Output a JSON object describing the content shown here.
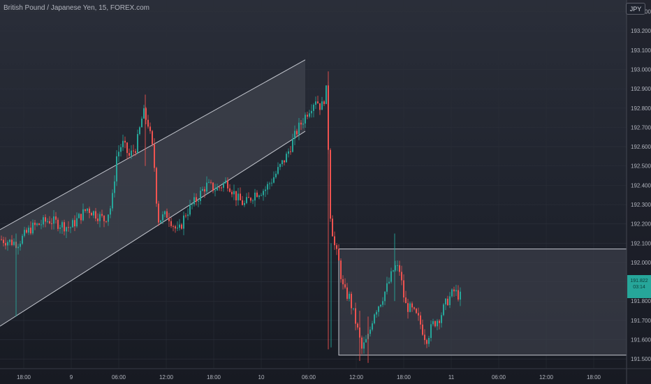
{
  "header": {
    "title": "British Pound / Japanese Yen, 15, FOREX.com",
    "currency": "JPY"
  },
  "price_tag": {
    "line1": "191.822",
    "line2": "03:14"
  },
  "colors": {
    "up": "#26a69a",
    "down": "#ef5350",
    "channel_fill": "#3c3f4a",
    "channel_line": "#c3c6ce",
    "background": "#222630"
  },
  "chart_data": {
    "type": "candlestick",
    "symbol": "GBP/JPY",
    "timeframe": "15",
    "source": "FOREX.com",
    "ylim": [
      191.45,
      193.36
    ],
    "y_ticks": [
      "193.300",
      "193.200",
      "193.100",
      "193.000",
      "192.900",
      "192.800",
      "192.700",
      "192.600",
      "192.500",
      "192.400",
      "192.300",
      "192.200",
      "192.100",
      "192.000",
      "191.900",
      "191.800",
      "191.700",
      "191.600",
      "191.500"
    ],
    "x_ticks": [
      "18:00",
      "9",
      "06:00",
      "12:00",
      "18:00",
      "10",
      "06:00",
      "12:00",
      "18:00",
      "11",
      "06:00",
      "12:00",
      "18:00"
    ],
    "last_price": 191.822,
    "ascending_channel": {
      "lower_line": [
        [
          0,
          191.67
        ],
        [
          437,
          192.68
        ]
      ],
      "upper_line": [
        [
          0,
          192.17
        ],
        [
          437,
          193.05
        ]
      ]
    },
    "range_box": {
      "top": 192.07,
      "bottom": 191.52
    },
    "price_path": [
      [
        0,
        192.12
      ],
      [
        25,
        192.1
      ],
      [
        45,
        192.18
      ],
      [
        70,
        192.22
      ],
      [
        100,
        192.18
      ],
      [
        125,
        192.28
      ],
      [
        150,
        192.22
      ],
      [
        160,
        192.3
      ],
      [
        167,
        192.55
      ],
      [
        175,
        192.62
      ],
      [
        185,
        192.55
      ],
      [
        195,
        192.6
      ],
      [
        205,
        192.78
      ],
      [
        212,
        192.72
      ],
      [
        220,
        192.55
      ],
      [
        226,
        192.22
      ],
      [
        240,
        192.25
      ],
      [
        255,
        192.15
      ],
      [
        265,
        192.25
      ],
      [
        280,
        192.32
      ],
      [
        295,
        192.4
      ],
      [
        310,
        192.38
      ],
      [
        325,
        192.42
      ],
      [
        340,
        192.33
      ],
      [
        350,
        192.3
      ],
      [
        365,
        192.36
      ],
      [
        380,
        192.38
      ],
      [
        395,
        192.46
      ],
      [
        410,
        192.55
      ],
      [
        425,
        192.68
      ],
      [
        440,
        192.78
      ],
      [
        452,
        192.85
      ],
      [
        460,
        192.8
      ],
      [
        468,
        192.9
      ],
      [
        470,
        192.6
      ],
      [
        473,
        192.25
      ],
      [
        478,
        192.1
      ],
      [
        485,
        192.0
      ],
      [
        492,
        191.85
      ],
      [
        500,
        191.82
      ],
      [
        510,
        191.68
      ],
      [
        518,
        191.55
      ],
      [
        528,
        191.62
      ],
      [
        535,
        191.74
      ],
      [
        545,
        191.8
      ],
      [
        555,
        191.88
      ],
      [
        565,
        191.98
      ],
      [
        572,
        191.96
      ],
      [
        580,
        191.78
      ],
      [
        590,
        191.75
      ],
      [
        600,
        191.7
      ],
      [
        610,
        191.6
      ],
      [
        620,
        191.68
      ],
      [
        630,
        191.72
      ],
      [
        640,
        191.8
      ],
      [
        650,
        191.85
      ],
      [
        660,
        191.82
      ]
    ]
  }
}
